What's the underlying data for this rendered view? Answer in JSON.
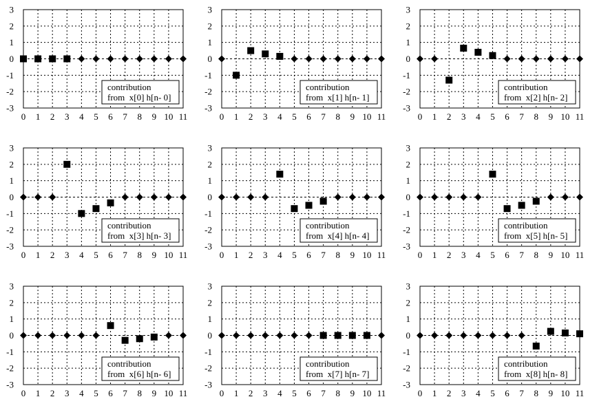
{
  "chart_data": [
    {
      "type": "scatter",
      "x": [
        0,
        1,
        2,
        3,
        4,
        5,
        6,
        7,
        8,
        9,
        10,
        11
      ],
      "ylim": [
        -3,
        3
      ],
      "xlim": [
        0,
        11
      ],
      "x_ticks": [
        "0",
        "1",
        "2",
        "3",
        "4",
        "5",
        "6",
        "7",
        "8",
        "9",
        "10",
        "11"
      ],
      "y_ticks": [
        "3",
        "2",
        "1",
        "0",
        "-1",
        "-2",
        "-3"
      ],
      "grid": true,
      "legend": {
        "line1": "contribution",
        "line2": "from  x[0] h[n- 0]"
      },
      "squares": [
        {
          "x": 0,
          "y": 0
        },
        {
          "x": 1,
          "y": 0
        },
        {
          "x": 2,
          "y": 0
        },
        {
          "x": 3,
          "y": 0
        }
      ],
      "diamonds": [
        4,
        5,
        6,
        7,
        8,
        9,
        10,
        11
      ]
    },
    {
      "type": "scatter",
      "x": [
        0,
        1,
        2,
        3,
        4,
        5,
        6,
        7,
        8,
        9,
        10,
        11
      ],
      "ylim": [
        -3,
        3
      ],
      "xlim": [
        0,
        11
      ],
      "x_ticks": [
        "0",
        "1",
        "2",
        "3",
        "4",
        "5",
        "6",
        "7",
        "8",
        "9",
        "10",
        "11"
      ],
      "y_ticks": [
        "3",
        "2",
        "1",
        "0",
        "-1",
        "-2",
        "-3"
      ],
      "grid": true,
      "legend": {
        "line1": "contribution",
        "line2": "from  x[1] h[n- 1]"
      },
      "squares": [
        {
          "x": 1,
          "y": -1.0
        },
        {
          "x": 2,
          "y": 0.5
        },
        {
          "x": 3,
          "y": 0.3
        },
        {
          "x": 4,
          "y": 0.15
        }
      ],
      "diamonds": [
        0,
        5,
        6,
        7,
        8,
        9,
        10,
        11
      ]
    },
    {
      "type": "scatter",
      "x": [
        0,
        1,
        2,
        3,
        4,
        5,
        6,
        7,
        8,
        9,
        10,
        11
      ],
      "ylim": [
        -3,
        3
      ],
      "xlim": [
        0,
        11
      ],
      "x_ticks": [
        "0",
        "1",
        "2",
        "3",
        "4",
        "5",
        "6",
        "7",
        "8",
        "9",
        "10",
        "11"
      ],
      "y_ticks": [
        "3",
        "2",
        "1",
        "0",
        "-1",
        "-2",
        "-3"
      ],
      "grid": true,
      "legend": {
        "line1": "contribution",
        "line2": "from  x[2] h[n- 2]"
      },
      "squares": [
        {
          "x": 2,
          "y": -1.3
        },
        {
          "x": 3,
          "y": 0.65
        },
        {
          "x": 4,
          "y": 0.4
        },
        {
          "x": 5,
          "y": 0.2
        }
      ],
      "diamonds": [
        0,
        1,
        6,
        7,
        8,
        9,
        10,
        11
      ]
    },
    {
      "type": "scatter",
      "x": [
        0,
        1,
        2,
        3,
        4,
        5,
        6,
        7,
        8,
        9,
        10,
        11
      ],
      "ylim": [
        -3,
        3
      ],
      "xlim": [
        0,
        11
      ],
      "x_ticks": [
        "0",
        "1",
        "2",
        "3",
        "4",
        "5",
        "6",
        "7",
        "8",
        "9",
        "10",
        "11"
      ],
      "y_ticks": [
        "3",
        "2",
        "1",
        "0",
        "-1",
        "-2",
        "-3"
      ],
      "grid": true,
      "legend": {
        "line1": "contribution",
        "line2": "from  x[3] h[n- 3]"
      },
      "squares": [
        {
          "x": 3,
          "y": 2.0
        },
        {
          "x": 4,
          "y": -1.0
        },
        {
          "x": 5,
          "y": -0.7
        },
        {
          "x": 6,
          "y": -0.35
        }
      ],
      "diamonds": [
        0,
        1,
        2,
        7,
        8,
        9,
        10,
        11
      ]
    },
    {
      "type": "scatter",
      "x": [
        0,
        1,
        2,
        3,
        4,
        5,
        6,
        7,
        8,
        9,
        10,
        11
      ],
      "ylim": [
        -3,
        3
      ],
      "xlim": [
        0,
        11
      ],
      "x_ticks": [
        "0",
        "1",
        "2",
        "3",
        "4",
        "5",
        "6",
        "7",
        "8",
        "9",
        "10",
        "11"
      ],
      "y_ticks": [
        "3",
        "2",
        "1",
        "0",
        "-1",
        "-2",
        "-3"
      ],
      "grid": true,
      "legend": {
        "line1": "contribution",
        "line2": "from  x[4] h[n- 4]"
      },
      "squares": [
        {
          "x": 4,
          "y": 1.4
        },
        {
          "x": 5,
          "y": -0.7
        },
        {
          "x": 6,
          "y": -0.5
        },
        {
          "x": 7,
          "y": -0.25
        }
      ],
      "diamonds": [
        0,
        1,
        2,
        3,
        8,
        9,
        10,
        11
      ]
    },
    {
      "type": "scatter",
      "x": [
        0,
        1,
        2,
        3,
        4,
        5,
        6,
        7,
        8,
        9,
        10,
        11
      ],
      "ylim": [
        -3,
        3
      ],
      "xlim": [
        0,
        11
      ],
      "x_ticks": [
        "0",
        "1",
        "2",
        "3",
        "4",
        "5",
        "6",
        "7",
        "8",
        "9",
        "10",
        "11"
      ],
      "y_ticks": [
        "3",
        "2",
        "1",
        "0",
        "-1",
        "-2",
        "-3"
      ],
      "grid": true,
      "legend": {
        "line1": "contribution",
        "line2": "from  x[5] h[n- 5]"
      },
      "squares": [
        {
          "x": 5,
          "y": 1.4
        },
        {
          "x": 6,
          "y": -0.7
        },
        {
          "x": 7,
          "y": -0.5
        },
        {
          "x": 8,
          "y": -0.25
        }
      ],
      "diamonds": [
        0,
        1,
        2,
        3,
        4,
        9,
        10,
        11
      ]
    },
    {
      "type": "scatter",
      "x": [
        0,
        1,
        2,
        3,
        4,
        5,
        6,
        7,
        8,
        9,
        10,
        11
      ],
      "ylim": [
        -3,
        3
      ],
      "xlim": [
        0,
        11
      ],
      "x_ticks": [
        "0",
        "1",
        "2",
        "3",
        "4",
        "5",
        "6",
        "7",
        "8",
        "9",
        "10",
        "11"
      ],
      "y_ticks": [
        "3",
        "2",
        "1",
        "0",
        "-1",
        "-2",
        "-3"
      ],
      "grid": true,
      "legend": {
        "line1": "contribution",
        "line2": "from  x[6] h[n- 6]"
      },
      "squares": [
        {
          "x": 6,
          "y": 0.6
        },
        {
          "x": 7,
          "y": -0.3
        },
        {
          "x": 8,
          "y": -0.2
        },
        {
          "x": 9,
          "y": -0.1
        }
      ],
      "diamonds": [
        0,
        1,
        2,
        3,
        4,
        5,
        10,
        11
      ]
    },
    {
      "type": "scatter",
      "x": [
        0,
        1,
        2,
        3,
        4,
        5,
        6,
        7,
        8,
        9,
        10,
        11
      ],
      "ylim": [
        -3,
        3
      ],
      "xlim": [
        0,
        11
      ],
      "x_ticks": [
        "0",
        "1",
        "2",
        "3",
        "4",
        "5",
        "6",
        "7",
        "8",
        "9",
        "10",
        "11"
      ],
      "y_ticks": [
        "3",
        "2",
        "1",
        "0",
        "-1",
        "-2",
        "-3"
      ],
      "grid": true,
      "legend": {
        "line1": "contribution",
        "line2": "from  x[7] h[n- 7]"
      },
      "squares": [
        {
          "x": 7,
          "y": 0
        },
        {
          "x": 8,
          "y": 0
        },
        {
          "x": 9,
          "y": 0
        },
        {
          "x": 10,
          "y": 0
        }
      ],
      "diamonds": [
        0,
        1,
        2,
        3,
        4,
        5,
        6,
        11
      ]
    },
    {
      "type": "scatter",
      "x": [
        0,
        1,
        2,
        3,
        4,
        5,
        6,
        7,
        8,
        9,
        10,
        11
      ],
      "ylim": [
        -3,
        3
      ],
      "xlim": [
        0,
        11
      ],
      "x_ticks": [
        "0",
        "1",
        "2",
        "3",
        "4",
        "5",
        "6",
        "7",
        "8",
        "9",
        "10",
        "11"
      ],
      "y_ticks": [
        "3",
        "2",
        "1",
        "0",
        "-1",
        "-2",
        "-3"
      ],
      "grid": true,
      "legend": {
        "line1": "contribution",
        "line2": "from  x[8] h[n- 8]"
      },
      "squares": [
        {
          "x": 8,
          "y": -0.65
        },
        {
          "x": 9,
          "y": 0.25
        },
        {
          "x": 10,
          "y": 0.15
        },
        {
          "x": 11,
          "y": 0.1
        }
      ],
      "diamonds": [
        0,
        1,
        2,
        3,
        4,
        5,
        6,
        7
      ]
    }
  ]
}
